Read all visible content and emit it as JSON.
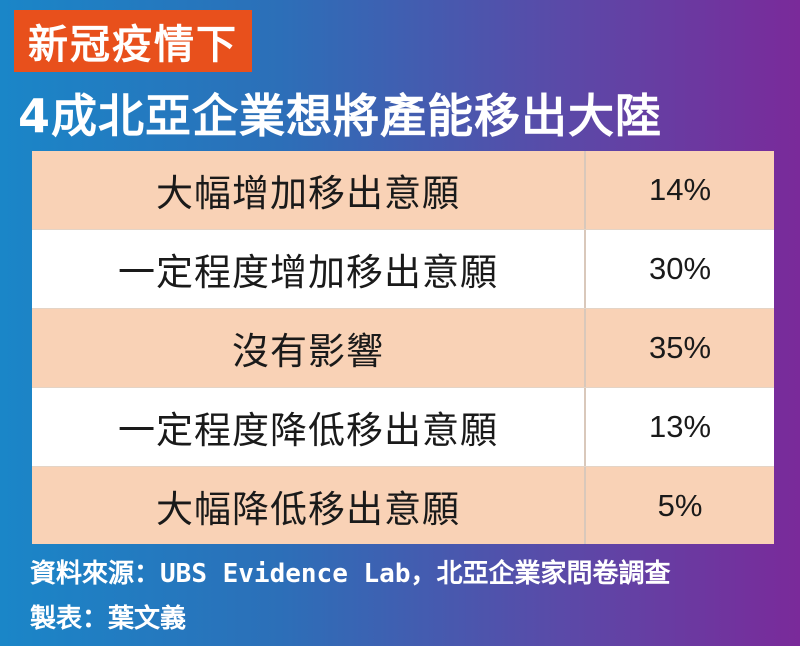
{
  "tag": "新冠疫情下",
  "headline": "4成北亞企業想將產能移出大陸",
  "chart_data": {
    "type": "table",
    "rows": [
      {
        "label": "大幅增加移出意願",
        "value": "14%"
      },
      {
        "label": "一定程度增加移出意願",
        "value": "30%"
      },
      {
        "label": "沒有影響",
        "value": "35%"
      },
      {
        "label": "一定程度降低移出意願",
        "value": "13%"
      },
      {
        "label": "大幅降低移出意願",
        "value": "5%"
      }
    ],
    "colors": {
      "odd_row": "#f9d2b6",
      "even_row": "#ffffff",
      "tag": "#e8501c"
    }
  },
  "footer": {
    "source_prefix": "資料來源：",
    "source_org": "UBS Evidence Lab",
    "source_suffix": "，北亞企業家問卷調查",
    "maker": "製表：葉文義"
  }
}
